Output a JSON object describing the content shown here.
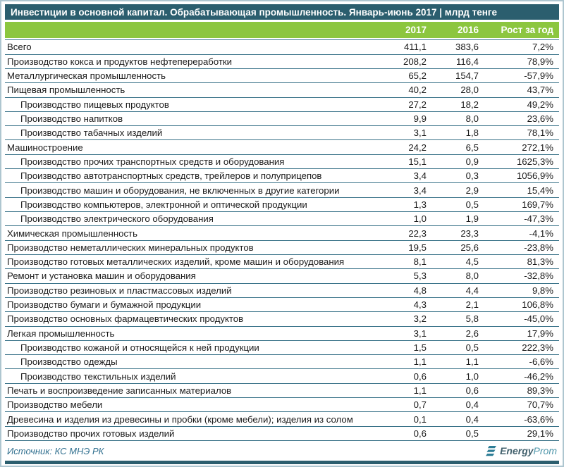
{
  "title": "Инвестиции в основной капитал. Обрабатывающая промышленность. Январь-июнь 2017 | млрд тенге",
  "chart_data": {
    "type": "table",
    "title": "Инвестиции в основной капитал. Обрабатывающая промышленность. Январь-июнь 2017 | млрд тенге",
    "unit": "млрд тенге",
    "columns": [
      "2017",
      "2016",
      "Рост за год"
    ],
    "rows": [
      {
        "label": "Всего",
        "indent": 0,
        "y2017": "411,1",
        "y2016": "383,6",
        "growth": "7,2%"
      },
      {
        "label": "Производство кокса и продуктов нефтепереработки",
        "indent": 0,
        "y2017": "208,2",
        "y2016": "116,4",
        "growth": "78,9%"
      },
      {
        "label": "Металлургическая промышленность",
        "indent": 0,
        "y2017": "65,2",
        "y2016": "154,7",
        "growth": "-57,9%"
      },
      {
        "label": "Пищевая промышленность",
        "indent": 0,
        "y2017": "40,2",
        "y2016": "28,0",
        "growth": "43,7%"
      },
      {
        "label": "Производство пищевых продуктов",
        "indent": 1,
        "y2017": "27,2",
        "y2016": "18,2",
        "growth": "49,2%"
      },
      {
        "label": "Производство напитков",
        "indent": 1,
        "y2017": "9,9",
        "y2016": "8,0",
        "growth": "23,6%"
      },
      {
        "label": "Производство табачных изделий",
        "indent": 1,
        "y2017": "3,1",
        "y2016": "1,8",
        "growth": "78,1%"
      },
      {
        "label": "Машиностроение",
        "indent": 0,
        "y2017": "24,2",
        "y2016": "6,5",
        "growth": "272,1%"
      },
      {
        "label": "Производство прочих транспортных средств и оборудования",
        "indent": 1,
        "y2017": "15,1",
        "y2016": "0,9",
        "growth": "1625,3%"
      },
      {
        "label": "Производство автотранспортных средств, трейлеров и полуприцепов",
        "indent": 1,
        "y2017": "3,4",
        "y2016": "0,3",
        "growth": "1056,9%"
      },
      {
        "label": "Производство машин и оборудования, не включенных в другие категории",
        "indent": 1,
        "y2017": "3,4",
        "y2016": "2,9",
        "growth": "15,4%"
      },
      {
        "label": "Производство компьютеров, электронной и оптической продукции",
        "indent": 1,
        "y2017": "1,3",
        "y2016": "0,5",
        "growth": "169,7%"
      },
      {
        "label": "Производство электрического оборудования",
        "indent": 1,
        "y2017": "1,0",
        "y2016": "1,9",
        "growth": "-47,3%"
      },
      {
        "label": "Химическая промышленность",
        "indent": 0,
        "y2017": "22,3",
        "y2016": "23,3",
        "growth": "-4,1%"
      },
      {
        "label": "Производство неметаллических минеральных продуктов",
        "indent": 0,
        "y2017": "19,5",
        "y2016": "25,6",
        "growth": "-23,8%"
      },
      {
        "label": "Производство готовых металлических изделий, кроме машин и оборудования",
        "indent": 0,
        "y2017": "8,1",
        "y2016": "4,5",
        "growth": "81,3%"
      },
      {
        "label": "Ремонт и установка машин и оборудования",
        "indent": 0,
        "y2017": "5,3",
        "y2016": "8,0",
        "growth": "-32,8%"
      },
      {
        "label": "Производство резиновых и пластмассовых изделий",
        "indent": 0,
        "y2017": "4,8",
        "y2016": "4,4",
        "growth": "9,8%"
      },
      {
        "label": "Производство бумаги и бумажной продукции",
        "indent": 0,
        "y2017": "4,3",
        "y2016": "2,1",
        "growth": "106,8%"
      },
      {
        "label": "Производство основных фармацевтических продуктов",
        "indent": 0,
        "y2017": "3,2",
        "y2016": "5,8",
        "growth": "-45,0%"
      },
      {
        "label": "Легкая промышленность",
        "indent": 0,
        "y2017": "3,1",
        "y2016": "2,6",
        "growth": "17,9%"
      },
      {
        "label": "Производство кожаной и относящейся к ней продукции",
        "indent": 1,
        "y2017": "1,5",
        "y2016": "0,5",
        "growth": "222,3%"
      },
      {
        "label": "Производство одежды",
        "indent": 1,
        "y2017": "1,1",
        "y2016": "1,1",
        "growth": "-6,6%"
      },
      {
        "label": "Производство текстильных изделий",
        "indent": 1,
        "y2017": "0,6",
        "y2016": "1,0",
        "growth": "-46,2%"
      },
      {
        "label": "Печать и воспроизведение записанных материалов",
        "indent": 0,
        "y2017": "1,1",
        "y2016": "0,6",
        "growth": "89,3%"
      },
      {
        "label": "Производство мебели",
        "indent": 0,
        "y2017": "0,7",
        "y2016": "0,4",
        "growth": "70,7%"
      },
      {
        "label": "Древесина и изделия из древесины и пробки (кроме мебели); изделия из солом",
        "indent": 0,
        "y2017": "0,1",
        "y2016": "0,4",
        "growth": "-63,6%"
      },
      {
        "label": "Производство прочих готовых изделий",
        "indent": 0,
        "y2017": "0,6",
        "y2016": "0,5",
        "growth": "29,1%"
      }
    ]
  },
  "footer": {
    "source": "Источник: КС МНЭ РК",
    "brand": {
      "energy": "Energy",
      "prom": "Prom"
    }
  },
  "colors": {
    "title_bar": "#2b5e6e",
    "header_green": "#8cc63f",
    "row_line": "#3a7389",
    "outer_border": "#aec6d0",
    "source_text": "#31708f",
    "logo_teal": "#2e7d96"
  }
}
